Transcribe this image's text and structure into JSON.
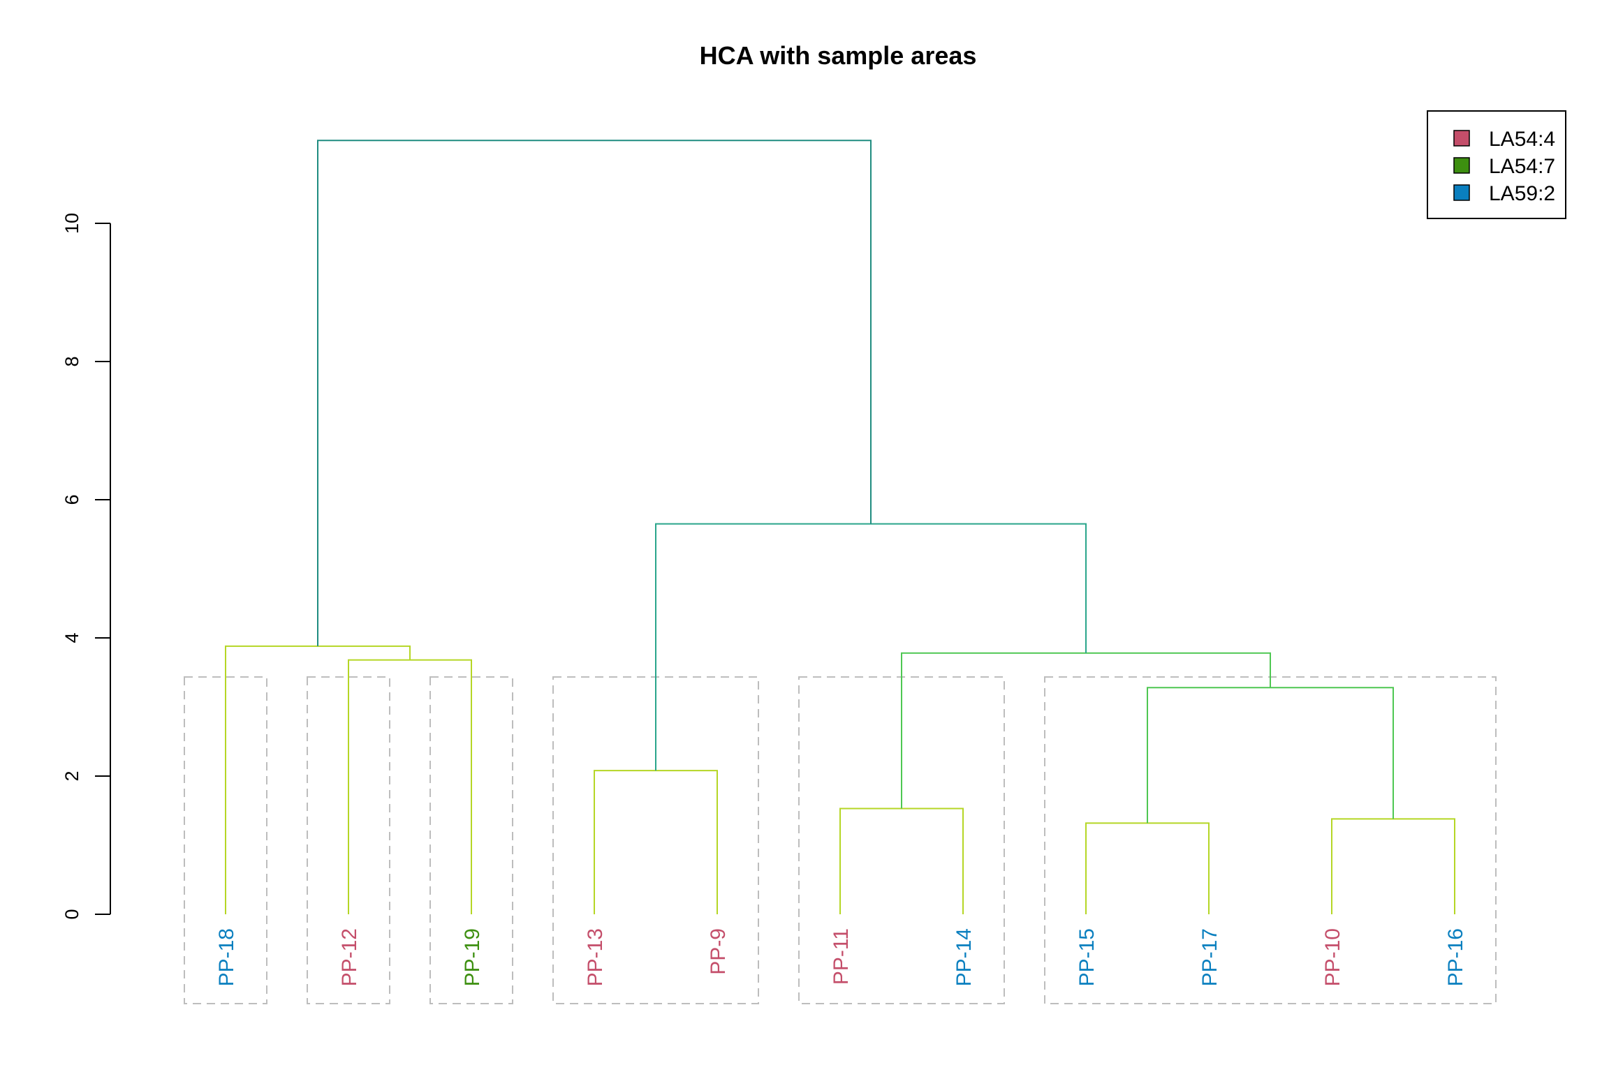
{
  "title": "HCA with sample areas",
  "colors": {
    "LA54:4": "#c44e6a",
    "LA54:7": "#3d8f10",
    "LA59:2": "#0a7fbf",
    "branch_low": "#b5d625",
    "branch_mid": "#4ec752",
    "branch_high": "#2aa58b",
    "branch_top": "#1f8c80",
    "box": "#bdbdbd"
  },
  "legend": {
    "placement": "top-right",
    "entries": [
      {
        "label": "LA54:4",
        "color": "#c44e6a"
      },
      {
        "label": "LA54:7",
        "color": "#3d8f10"
      },
      {
        "label": "LA59:2",
        "color": "#0a7fbf"
      }
    ]
  },
  "chart_data": {
    "type": "dendrogram",
    "title": "HCA with sample areas",
    "ylabel": "",
    "ylim": [
      0,
      11.2
    ],
    "yticks": [
      "0",
      "2",
      "4",
      "6",
      "8",
      "10"
    ],
    "leaves": [
      {
        "label": "PP-18",
        "group": "LA59:2"
      },
      {
        "label": "PP-12",
        "group": "LA54:4"
      },
      {
        "label": "PP-19",
        "group": "LA54:7"
      },
      {
        "label": "PP-13",
        "group": "LA54:4"
      },
      {
        "label": "PP-9",
        "group": "LA54:4"
      },
      {
        "label": "PP-11",
        "group": "LA54:4"
      },
      {
        "label": "PP-14",
        "group": "LA59:2"
      },
      {
        "label": "PP-15",
        "group": "LA59:2"
      },
      {
        "label": "PP-17",
        "group": "LA59:2"
      },
      {
        "label": "PP-10",
        "group": "LA54:4"
      },
      {
        "label": "PP-16",
        "group": "LA59:2"
      }
    ],
    "merges": [
      {
        "id": "m1",
        "left": "PP-15",
        "right": "PP-17",
        "height": 1.32,
        "color": "branch_low"
      },
      {
        "id": "m2",
        "left": "PP-10",
        "right": "PP-16",
        "height": 1.38,
        "color": "branch_low"
      },
      {
        "id": "m3",
        "left": "PP-11",
        "right": "PP-14",
        "height": 1.53,
        "color": "branch_low"
      },
      {
        "id": "m4",
        "left": "PP-13",
        "right": "PP-9",
        "height": 2.08,
        "color": "branch_low"
      },
      {
        "id": "m5",
        "left": "m1",
        "right": "m2",
        "height": 3.28,
        "color": "branch_mid"
      },
      {
        "id": "m6",
        "left": "PP-12",
        "right": "PP-19",
        "height": 3.68,
        "color": "branch_low"
      },
      {
        "id": "m7",
        "left": "m3",
        "right": "m5",
        "height": 3.78,
        "color": "branch_mid"
      },
      {
        "id": "m8",
        "left": "PP-18",
        "right": "m6",
        "height": 3.88,
        "color": "branch_low"
      },
      {
        "id": "m9",
        "left": "m4",
        "right": "m7",
        "height": 5.65,
        "color": "branch_high"
      },
      {
        "id": "m10",
        "left": "m8",
        "right": "m9",
        "height": 11.2,
        "color": "branch_top"
      }
    ],
    "clusters": [
      {
        "from": 0,
        "to": 0
      },
      {
        "from": 1,
        "to": 1
      },
      {
        "from": 2,
        "to": 2
      },
      {
        "from": 3,
        "to": 4
      },
      {
        "from": 5,
        "to": 6
      },
      {
        "from": 7,
        "to": 10
      }
    ]
  }
}
